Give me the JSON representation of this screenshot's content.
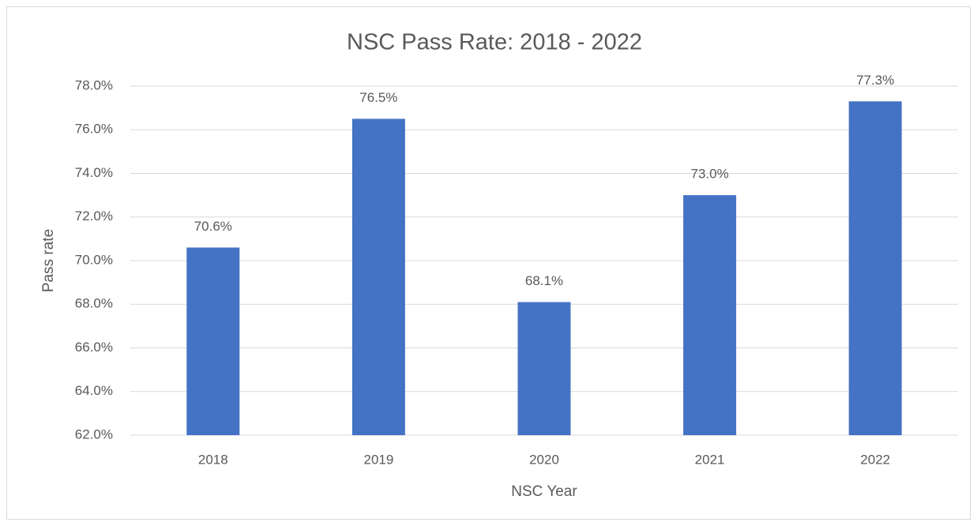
{
  "chart_data": {
    "type": "bar",
    "title": "NSC Pass Rate: 2018 - 2022",
    "x_label": "NSC Year",
    "y_label": "Pass rate",
    "categories": [
      "2018",
      "2019",
      "2020",
      "2021",
      "2022"
    ],
    "values": [
      70.6,
      76.5,
      68.1,
      73.0,
      77.3
    ],
    "value_labels": [
      "70.6%",
      "76.5%",
      "68.1%",
      "73.0%",
      "77.3%"
    ],
    "color": "#4472c4",
    "ylim": [
      62,
      78
    ],
    "yticks": [
      {
        "value": 62,
        "label": "62.0%"
      },
      {
        "value": 64,
        "label": "64.0%"
      },
      {
        "value": 66,
        "label": "66.0%"
      },
      {
        "value": 68,
        "label": "68.0%"
      },
      {
        "value": 70,
        "label": "70.0%"
      },
      {
        "value": 72,
        "label": "72.0%"
      },
      {
        "value": 74,
        "label": "74.0%"
      },
      {
        "value": 76,
        "label": "76.0%"
      },
      {
        "value": 78,
        "label": "78.0%"
      }
    ],
    "grid": true
  }
}
